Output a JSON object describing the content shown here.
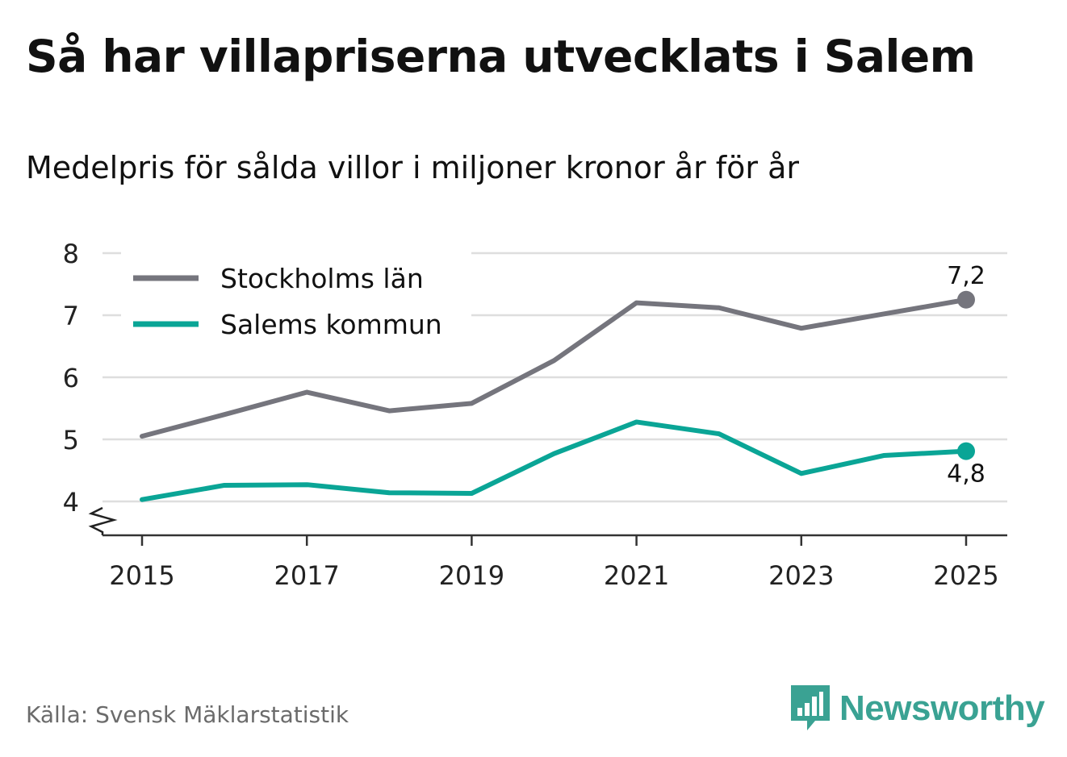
{
  "title": "Så har villapriserna utvecklats i Salem",
  "subtitle": "Medelpris för sålda villor i miljoner kronor år för år",
  "source": "Källa: Svensk Mäklarstatistik",
  "brand": {
    "name": "Newsworthy",
    "logo_icon": "bar-chart-speech-bubble-icon",
    "color": "#3aa293"
  },
  "chart_data": {
    "type": "line",
    "x": [
      2015,
      2016,
      2017,
      2018,
      2019,
      2020,
      2021,
      2022,
      2023,
      2024,
      2025
    ],
    "xticks": [
      "2015",
      "2017",
      "2019",
      "2021",
      "2023",
      "2025"
    ],
    "yticks": [
      "4",
      "5",
      "6",
      "7",
      "8"
    ],
    "ylim": [
      3.45,
      8
    ],
    "axis_break": true,
    "grid": true,
    "legend_position": "top-left",
    "series": [
      {
        "name": "Stockholms län",
        "color": "#75757d",
        "values": [
          5.05,
          5.4,
          5.76,
          5.46,
          5.58,
          6.27,
          7.2,
          7.12,
          6.79,
          7.02,
          7.25
        ],
        "end_label": "7,2"
      },
      {
        "name": "Salems kommun",
        "color": "#0aa596",
        "values": [
          4.03,
          4.26,
          4.27,
          4.14,
          4.13,
          4.77,
          5.28,
          5.09,
          4.45,
          4.74,
          4.81
        ],
        "end_label": "4,8"
      }
    ]
  }
}
